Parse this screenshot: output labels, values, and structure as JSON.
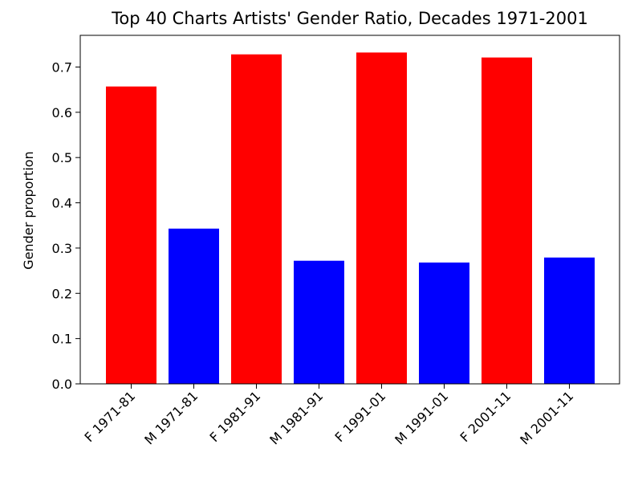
{
  "chart_data": {
    "type": "bar",
    "title": "Top 40 Charts Artists' Gender Ratio, Decades 1971-2001",
    "xlabel": "",
    "ylabel": "Gender proportion",
    "categories": [
      "F 1971-81",
      "M 1971-81",
      "F 1981-91",
      "M 1981-91",
      "F 1991-01",
      "M 1991-01",
      "F 2001-11",
      "M 2001-11"
    ],
    "values": [
      0.657,
      0.343,
      0.728,
      0.272,
      0.732,
      0.268,
      0.721,
      0.279
    ],
    "bar_colors": [
      "#ff0000",
      "#0000ff",
      "#ff0000",
      "#0000ff",
      "#ff0000",
      "#0000ff",
      "#ff0000",
      "#0000ff"
    ],
    "ylim": [
      0,
      0.77
    ],
    "yticks": [
      0.0,
      0.1,
      0.2,
      0.3,
      0.4,
      0.5,
      0.6,
      0.7
    ],
    "ytick_labels": [
      "0.0",
      "0.1",
      "0.2",
      "0.3",
      "0.4",
      "0.5",
      "0.6",
      "0.7"
    ],
    "grid": false,
    "legend": "none"
  }
}
